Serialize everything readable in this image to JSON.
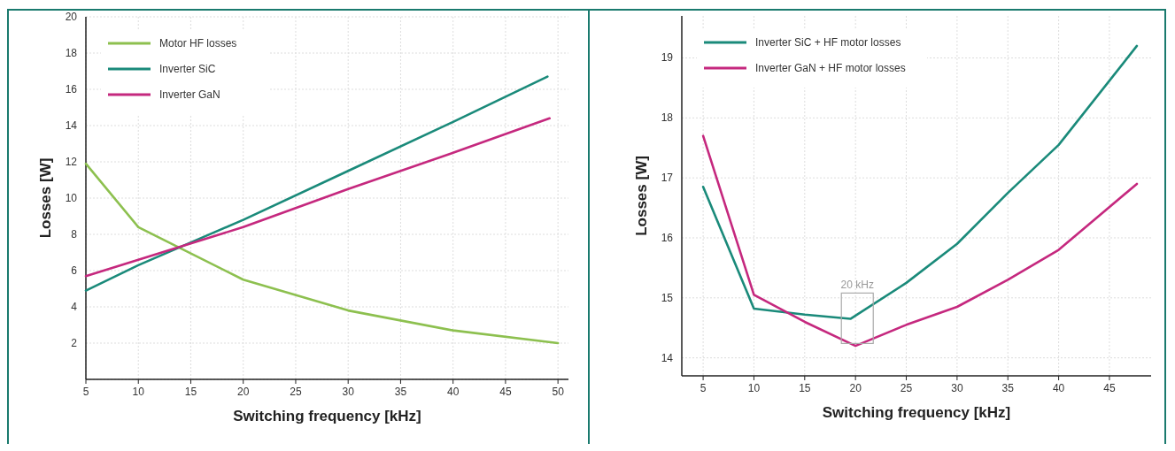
{
  "chart_data": [
    {
      "type": "line",
      "xlabel": "Switching frequency [kHz]",
      "ylabel": "Losses [W]",
      "xlim": [
        5,
        51
      ],
      "xticks": [
        5,
        10,
        15,
        20,
        25,
        30,
        35,
        40,
        45,
        50
      ],
      "ylim": [
        0,
        20
      ],
      "yticks": [
        {
          "value": 0,
          "label": null
        },
        2,
        4,
        6,
        8,
        10,
        12,
        14,
        16,
        18,
        20
      ],
      "grid": true,
      "legend": "top left",
      "series": [
        {
          "name": "Motor HF losses",
          "color": "#8dc04f",
          "x": [
            5,
            10,
            20,
            30,
            40,
            50
          ],
          "values": [
            11.9,
            8.4,
            5.5,
            3.8,
            2.7,
            2.0
          ]
        },
        {
          "name": "Inverter SiC",
          "color": "#1a8a7a",
          "x": [
            5,
            10,
            20,
            30,
            40,
            49
          ],
          "values": [
            4.9,
            6.3,
            8.8,
            11.5,
            14.2,
            16.7
          ]
        },
        {
          "name": "Inverter GaN",
          "color": "#c5287e",
          "x": [
            5,
            10,
            20,
            30,
            40,
            49.2
          ],
          "values": [
            5.7,
            6.6,
            8.4,
            10.5,
            12.5,
            14.4
          ]
        }
      ]
    },
    {
      "type": "line",
      "xlabel": "Switching frequency [kHz]",
      "ylabel": "Losses [W]",
      "xlim": [
        2.9,
        49.1
      ],
      "xticks": [
        5,
        10,
        15,
        20,
        25,
        30,
        35,
        40,
        45
      ],
      "ylim": [
        13.7,
        19.7
      ],
      "yticks": [
        14,
        15,
        16,
        17,
        18,
        19
      ],
      "grid": true,
      "legend": "top left",
      "annotations": [
        "20 kHz"
      ],
      "series": [
        {
          "name": "Inverter SiC + HF motor losses",
          "color": "#1a8a7a",
          "x": [
            5,
            10,
            15,
            19.5,
            25,
            30,
            35,
            40,
            47.7
          ],
          "values": [
            16.85,
            14.82,
            14.72,
            14.65,
            15.25,
            15.9,
            16.75,
            17.55,
            19.2
          ]
        },
        {
          "name": "Inverter GaN + HF motor losses",
          "color": "#c5287e",
          "x": [
            5,
            10,
            15,
            20,
            25,
            30,
            35,
            40,
            47.7
          ],
          "values": [
            17.7,
            15.05,
            14.6,
            14.2,
            14.55,
            14.85,
            15.3,
            15.8,
            16.9
          ]
        }
      ]
    }
  ]
}
